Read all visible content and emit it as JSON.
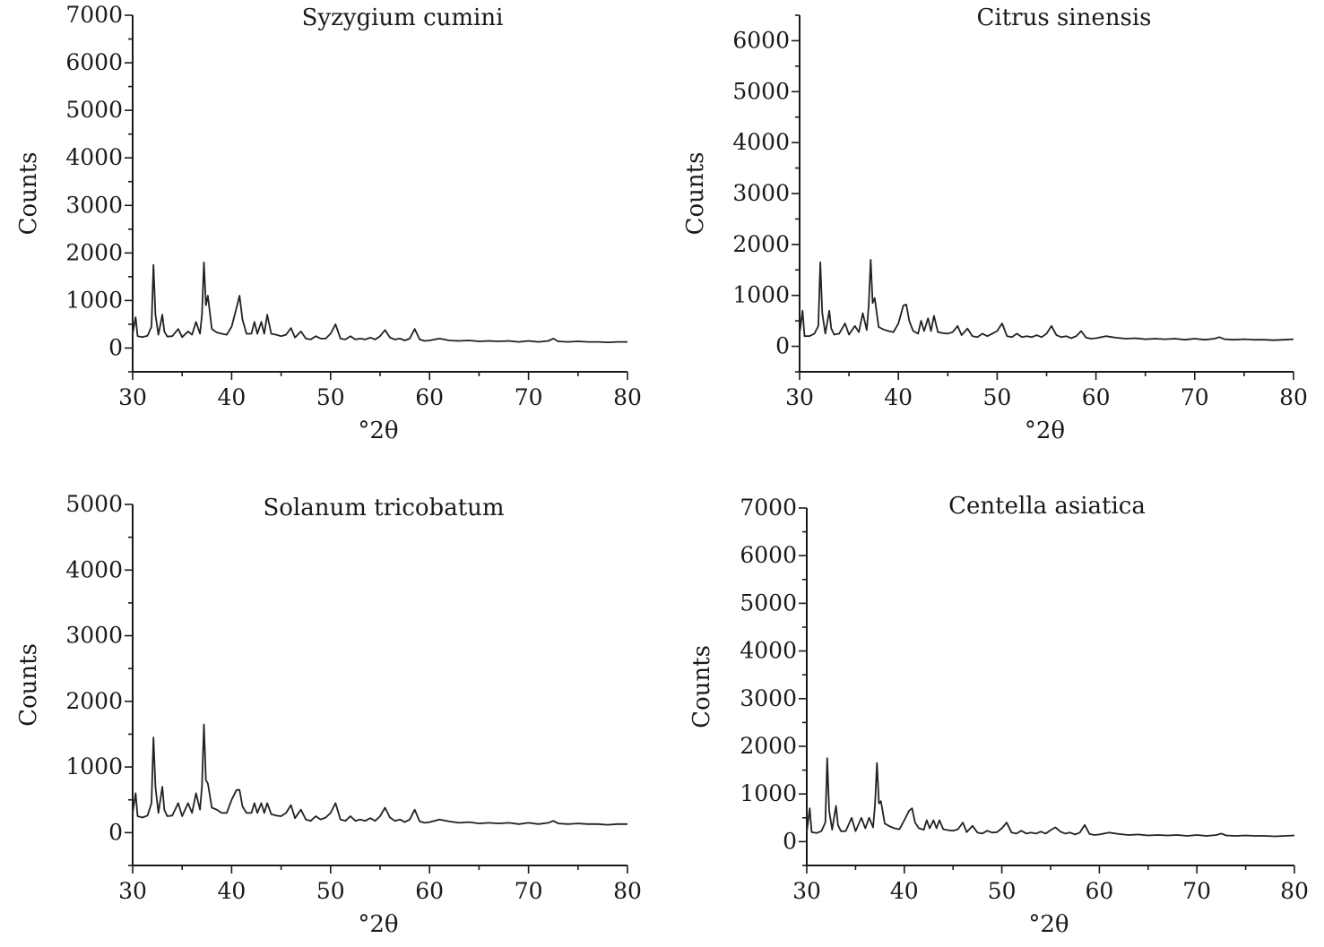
{
  "chart_data": [
    {
      "type": "line",
      "title": "Syzygium cumini",
      "xlabel": "°2θ",
      "ylabel": "Counts",
      "xlim": [
        30,
        80
      ],
      "ylim": [
        -500,
        7000
      ],
      "xticks": [
        "30",
        "40",
        "50",
        "60",
        "70",
        "80"
      ],
      "yticks": [
        "0",
        "1000",
        "2000",
        "3000",
        "4000",
        "5000",
        "6000",
        "7000"
      ],
      "x": [
        30.0,
        30.3,
        30.5,
        31.0,
        31.5,
        31.9,
        32.1,
        32.3,
        32.6,
        33.0,
        33.2,
        33.5,
        34.0,
        34.6,
        35.0,
        35.6,
        36.0,
        36.4,
        36.8,
        37.0,
        37.2,
        37.4,
        37.6,
        38.0,
        38.5,
        39.0,
        39.5,
        40.0,
        40.5,
        40.8,
        41.1,
        41.5,
        42.0,
        42.3,
        42.6,
        43.0,
        43.3,
        43.6,
        44.0,
        44.5,
        45.0,
        45.5,
        46.0,
        46.4,
        47.0,
        47.5,
        48.0,
        48.5,
        49.0,
        49.5,
        50.0,
        50.5,
        51.0,
        51.5,
        52.0,
        52.5,
        53.0,
        53.5,
        54.0,
        54.5,
        55.0,
        55.5,
        56.0,
        56.5,
        57.0,
        57.5,
        58.0,
        58.5,
        59.0,
        59.5,
        60.0,
        61.0,
        62.0,
        63.0,
        64.0,
        65.0,
        66.0,
        67.0,
        68.0,
        69.0,
        70.0,
        71.0,
        72.0,
        72.5,
        73.0,
        74.0,
        75.0,
        76.0,
        77.0,
        78.0,
        79.0,
        80.0
      ],
      "y": [
        300,
        650,
        250,
        230,
        260,
        450,
        1750,
        700,
        280,
        700,
        350,
        240,
        250,
        400,
        230,
        350,
        280,
        550,
        300,
        700,
        1800,
        900,
        1100,
        400,
        330,
        300,
        280,
        450,
        850,
        1100,
        600,
        300,
        300,
        550,
        300,
        550,
        300,
        700,
        300,
        280,
        250,
        280,
        420,
        220,
        350,
        200,
        180,
        250,
        200,
        200,
        300,
        500,
        200,
        180,
        250,
        180,
        200,
        180,
        220,
        180,
        250,
        380,
        220,
        180,
        200,
        160,
        200,
        400,
        180,
        150,
        160,
        200,
        160,
        150,
        160,
        140,
        150,
        140,
        150,
        130,
        150,
        130,
        150,
        200,
        140,
        130,
        140,
        130,
        130,
        120,
        130,
        130
      ]
    },
    {
      "type": "line",
      "title": "Citrus sinensis",
      "xlabel": "°2θ",
      "ylabel": "Counts",
      "xlim": [
        30,
        80
      ],
      "ylim": [
        -500,
        6500
      ],
      "xticks": [
        "30",
        "40",
        "50",
        "60",
        "70",
        "80"
      ],
      "yticks": [
        "0",
        "1000",
        "2000",
        "3000",
        "4000",
        "5000",
        "6000"
      ],
      "x": [
        30.0,
        30.3,
        30.5,
        31.0,
        31.5,
        31.9,
        32.1,
        32.3,
        32.6,
        33.0,
        33.2,
        33.5,
        34.0,
        34.6,
        35.0,
        35.6,
        36.0,
        36.4,
        36.8,
        37.0,
        37.2,
        37.4,
        37.6,
        38.0,
        38.5,
        39.0,
        39.5,
        40.0,
        40.5,
        40.8,
        41.1,
        41.5,
        42.0,
        42.3,
        42.6,
        43.0,
        43.3,
        43.6,
        44.0,
        44.5,
        45.0,
        45.5,
        46.0,
        46.4,
        47.0,
        47.5,
        48.0,
        48.5,
        49.0,
        49.5,
        50.0,
        50.5,
        51.0,
        51.5,
        52.0,
        52.5,
        53.0,
        53.5,
        54.0,
        54.5,
        55.0,
        55.5,
        56.0,
        56.5,
        57.0,
        57.5,
        58.0,
        58.5,
        59.0,
        59.5,
        60.0,
        61.0,
        62.0,
        63.0,
        64.0,
        65.0,
        66.0,
        67.0,
        68.0,
        69.0,
        70.0,
        71.0,
        72.0,
        72.5,
        73.0,
        74.0,
        75.0,
        76.0,
        77.0,
        78.0,
        79.0,
        80.0
      ],
      "y": [
        250,
        700,
        200,
        200,
        250,
        400,
        1650,
        650,
        250,
        700,
        350,
        230,
        250,
        450,
        230,
        400,
        280,
        650,
        320,
        800,
        1700,
        850,
        950,
        380,
        330,
        300,
        280,
        450,
        800,
        820,
        500,
        300,
        250,
        500,
        300,
        550,
        300,
        600,
        280,
        260,
        250,
        280,
        400,
        220,
        350,
        200,
        180,
        250,
        200,
        250,
        300,
        450,
        200,
        180,
        250,
        180,
        200,
        180,
        220,
        180,
        250,
        400,
        220,
        180,
        200,
        160,
        200,
        300,
        170,
        150,
        160,
        200,
        170,
        150,
        160,
        140,
        150,
        140,
        150,
        130,
        150,
        130,
        150,
        180,
        140,
        130,
        140,
        130,
        130,
        120,
        130,
        140
      ]
    },
    {
      "type": "line",
      "title": "Solanum tricobatum",
      "xlabel": "°2θ",
      "ylabel": "Counts",
      "xlim": [
        30,
        80
      ],
      "ylim": [
        -500,
        5000
      ],
      "xticks": [
        "30",
        "40",
        "50",
        "60",
        "70",
        "80"
      ],
      "yticks": [
        "0",
        "1000",
        "2000",
        "3000",
        "4000",
        "5000"
      ],
      "x": [
        30.0,
        30.3,
        30.5,
        31.0,
        31.5,
        31.9,
        32.1,
        32.3,
        32.6,
        33.0,
        33.2,
        33.5,
        34.0,
        34.6,
        35.0,
        35.6,
        36.0,
        36.4,
        36.8,
        37.0,
        37.2,
        37.4,
        37.6,
        38.0,
        38.5,
        39.0,
        39.5,
        40.0,
        40.5,
        40.8,
        41.1,
        41.5,
        42.0,
        42.3,
        42.6,
        43.0,
        43.3,
        43.6,
        44.0,
        44.5,
        45.0,
        45.5,
        46.0,
        46.4,
        47.0,
        47.5,
        48.0,
        48.5,
        49.0,
        49.5,
        50.0,
        50.5,
        51.0,
        51.5,
        52.0,
        52.5,
        53.0,
        53.5,
        54.0,
        54.5,
        55.0,
        55.5,
        56.0,
        56.5,
        57.0,
        57.5,
        58.0,
        58.5,
        59.0,
        59.5,
        60.0,
        61.0,
        62.0,
        63.0,
        64.0,
        65.0,
        66.0,
        67.0,
        68.0,
        69.0,
        70.0,
        71.0,
        72.0,
        72.5,
        73.0,
        74.0,
        75.0,
        76.0,
        77.0,
        78.0,
        79.0,
        80.0
      ],
      "y": [
        300,
        600,
        250,
        230,
        260,
        450,
        1450,
        700,
        300,
        700,
        350,
        250,
        260,
        450,
        250,
        450,
        300,
        600,
        350,
        700,
        1650,
        800,
        750,
        380,
        350,
        300,
        300,
        500,
        650,
        650,
        400,
        300,
        300,
        450,
        300,
        450,
        300,
        450,
        280,
        260,
        250,
        300,
        420,
        220,
        350,
        200,
        180,
        250,
        200,
        230,
        300,
        450,
        200,
        180,
        250,
        180,
        200,
        180,
        220,
        180,
        250,
        380,
        230,
        180,
        200,
        160,
        200,
        350,
        170,
        150,
        160,
        200,
        170,
        150,
        160,
        140,
        150,
        140,
        150,
        130,
        150,
        130,
        150,
        180,
        140,
        130,
        140,
        130,
        130,
        120,
        130,
        130
      ]
    },
    {
      "type": "line",
      "title": "Centella asiatica",
      "xlabel": "°2θ",
      "ylabel": "Counts",
      "xlim": [
        30,
        80
      ],
      "ylim": [
        -500,
        7000
      ],
      "xticks": [
        "30",
        "40",
        "50",
        "60",
        "70",
        "80"
      ],
      "yticks": [
        "0",
        "1000",
        "2000",
        "3000",
        "4000",
        "5000",
        "6000",
        "7000"
      ],
      "x": [
        30.0,
        30.3,
        30.5,
        31.0,
        31.5,
        31.9,
        32.1,
        32.3,
        32.6,
        33.0,
        33.2,
        33.5,
        34.0,
        34.6,
        35.0,
        35.6,
        36.0,
        36.4,
        36.8,
        37.0,
        37.2,
        37.4,
        37.6,
        38.0,
        38.5,
        39.0,
        39.5,
        40.0,
        40.5,
        40.8,
        41.1,
        41.5,
        42.0,
        42.3,
        42.6,
        43.0,
        43.3,
        43.6,
        44.0,
        44.5,
        45.0,
        45.5,
        46.0,
        46.4,
        47.0,
        47.5,
        48.0,
        48.5,
        49.0,
        49.5,
        50.0,
        50.5,
        51.0,
        51.5,
        52.0,
        52.5,
        53.0,
        53.5,
        54.0,
        54.5,
        55.0,
        55.5,
        56.0,
        56.5,
        57.0,
        57.5,
        58.0,
        58.5,
        59.0,
        59.5,
        60.0,
        61.0,
        62.0,
        63.0,
        64.0,
        65.0,
        66.0,
        67.0,
        68.0,
        69.0,
        70.0,
        71.0,
        72.0,
        72.5,
        73.0,
        74.0,
        75.0,
        76.0,
        77.0,
        78.0,
        79.0,
        80.0
      ],
      "y": [
        200,
        700,
        200,
        180,
        220,
        400,
        1750,
        650,
        250,
        750,
        350,
        220,
        220,
        500,
        220,
        500,
        280,
        500,
        300,
        800,
        1650,
        800,
        850,
        380,
        320,
        280,
        260,
        450,
        650,
        700,
        400,
        280,
        250,
        450,
        280,
        450,
        280,
        450,
        260,
        240,
        230,
        260,
        400,
        200,
        330,
        190,
        170,
        230,
        190,
        200,
        280,
        400,
        190,
        170,
        230,
        170,
        190,
        170,
        210,
        170,
        240,
        300,
        210,
        170,
        190,
        150,
        190,
        350,
        160,
        140,
        150,
        190,
        160,
        140,
        150,
        130,
        140,
        130,
        140,
        120,
        140,
        120,
        140,
        170,
        130,
        120,
        130,
        120,
        120,
        110,
        120,
        130
      ]
    }
  ]
}
